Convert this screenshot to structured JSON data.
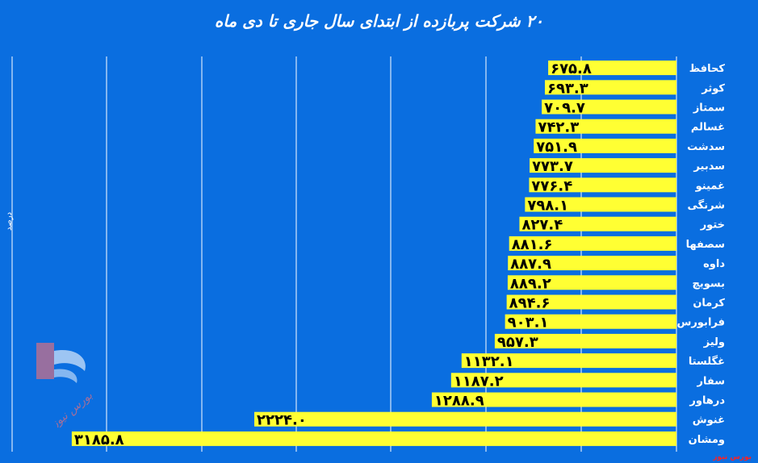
{
  "chart_data": {
    "type": "bar",
    "orientation": "horizontal",
    "title": "۲۰ شرکت پربازده از ابتدای سال جاری تا دی ماه",
    "ylabel": "درصد",
    "categories": [
      "کحافظ",
      "کوثر",
      "سمتاز",
      "غسالم",
      "سدشت",
      "سدبیر",
      "غمینو",
      "شرنگی",
      "ختور",
      "سصفها",
      "داوه",
      "بسویچ",
      "کرمان",
      "فرابورس",
      "ولیز",
      "غگلستا",
      "سفار",
      "درهاور",
      "غنوش",
      "ومشان"
    ],
    "values": [
      675.8,
      693.3,
      709.7,
      742.3,
      751.9,
      773.7,
      776.4,
      798.1,
      827.4,
      881.6,
      887.9,
      889.2,
      894.6,
      903.1,
      957.3,
      1132.1,
      1187.2,
      1288.9,
      2224.0,
      3185.8
    ],
    "value_labels": [
      "۶۷۵.۸",
      "۶۹۳.۳",
      "۷۰۹.۷",
      "۷۴۲.۳",
      "۷۵۱.۹",
      "۷۷۳.۷",
      "۷۷۶.۴",
      "۷۹۸.۱",
      "۸۲۷.۴",
      "۸۸۱.۶",
      "۸۸۷.۹",
      "۸۸۹.۲",
      "۸۹۴.۶",
      "۹۰۳.۱",
      "۹۵۷.۳",
      "۱۱۳۲.۱",
      "۱۱۸۷.۲",
      "۱۲۸۸.۹",
      "۲۲۲۴.۰",
      "۳۱۸۵.۸"
    ],
    "xlim": [
      0,
      3500
    ],
    "grid": true,
    "bar_color": "#ffff33",
    "background_color": "#0a6ee0"
  },
  "source_text": "بورس نیوز",
  "watermark_text": "بورس نیوز"
}
